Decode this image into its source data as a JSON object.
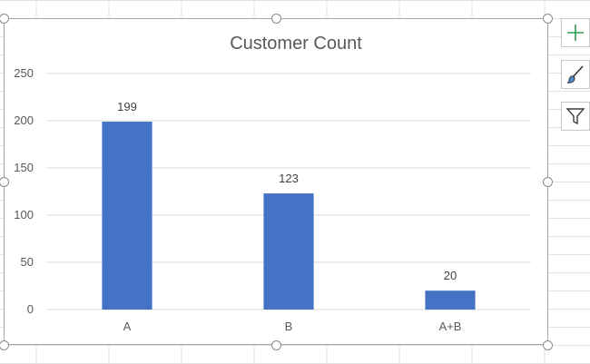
{
  "chart_data": {
    "type": "bar",
    "title": "Customer Count",
    "categories": [
      "A",
      "B",
      "A+B"
    ],
    "values": [
      199,
      123,
      20
    ],
    "data_labels": [
      "199",
      "123",
      "20"
    ],
    "ylim": [
      0,
      250
    ],
    "yticks": [
      0,
      50,
      100,
      150,
      200,
      250
    ],
    "xlabel": "",
    "ylabel": "",
    "grid": true,
    "bar_color": "#4472c4",
    "gridline_color": "#d9d9d9"
  },
  "chart_tools": {
    "icons": [
      "chart-elements-plus-icon",
      "chart-styles-brush-icon",
      "chart-filters-funnel-icon"
    ],
    "plus_color": "#2e9c52"
  }
}
